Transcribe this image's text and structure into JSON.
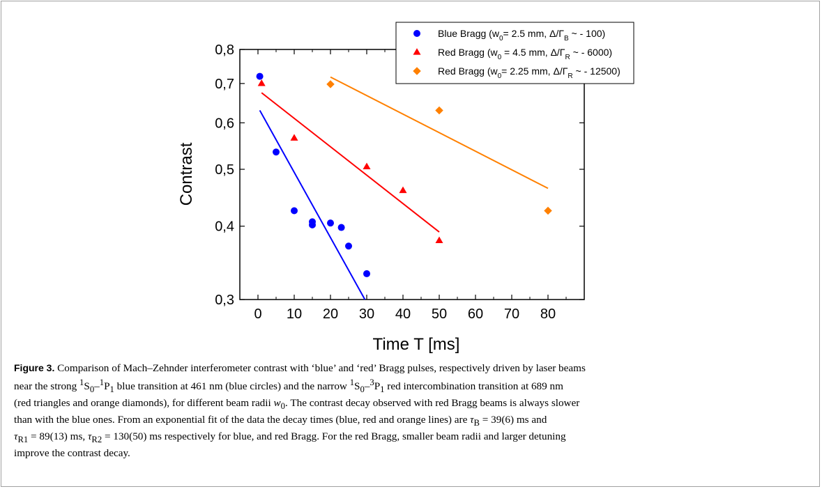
{
  "chart_data": {
    "type": "scatter",
    "y_scale": "log",
    "xlabel": "Time  T [ms]",
    "ylabel": "Contrast",
    "xlim": [
      -5,
      90
    ],
    "ylim": [
      0.3,
      0.8
    ],
    "x_ticks": [
      0,
      10,
      20,
      30,
      40,
      50,
      60,
      70,
      80
    ],
    "y_ticks": [
      {
        "value": 0.3,
        "label": "0,3"
      },
      {
        "value": 0.4,
        "label": "0,4"
      },
      {
        "value": 0.5,
        "label": "0,5"
      },
      {
        "value": 0.6,
        "label": "0,6"
      },
      {
        "value": 0.7,
        "label": "0,7"
      },
      {
        "value": 0.8,
        "label": "0,8"
      }
    ],
    "grid": false,
    "legend_position": "top-right",
    "series": [
      {
        "name": "Blue Bragg",
        "legend": {
          "pre": "Blue Bragg (w",
          "sub1": "0",
          "mid": "= 2.5 mm, Δ/Γ",
          "sub2": "B",
          "post": " ~ - 100)"
        },
        "marker": "circle",
        "color": "#0000ff",
        "points": [
          [
            0.5,
            0.72
          ],
          [
            5,
            0.535
          ],
          [
            10,
            0.425
          ],
          [
            15,
            0.407
          ],
          [
            15,
            0.402
          ],
          [
            20,
            0.405
          ],
          [
            23,
            0.398
          ],
          [
            25,
            0.37
          ],
          [
            30,
            0.332
          ]
        ],
        "fit": [
          [
            0.5,
            0.63
          ],
          [
            29.5,
            0.3
          ]
        ]
      },
      {
        "name": "Red Bragg",
        "legend": {
          "pre": "Red Bragg (w",
          "sub1": "0",
          "mid": " = 4.5 mm, Δ/Γ",
          "sub2": "R",
          "post": " ~ - 6000)"
        },
        "marker": "triangle",
        "color": "#ff0000",
        "points": [
          [
            1,
            0.7
          ],
          [
            10,
            0.565
          ],
          [
            30,
            0.505
          ],
          [
            40,
            0.46
          ],
          [
            50,
            0.378
          ]
        ],
        "fit": [
          [
            1,
            0.675
          ],
          [
            50,
            0.391
          ]
        ]
      },
      {
        "name": "Red Bragg",
        "legend": {
          "pre": "Red Bragg (w",
          "sub1": "0",
          "mid": "= 2.25 mm, Δ/Γ",
          "sub2": "R",
          "post": " ~ - 12500)"
        },
        "marker": "diamond",
        "color": "#ff8000",
        "points": [
          [
            20,
            0.698
          ],
          [
            50,
            0.63
          ],
          [
            80,
            0.425
          ]
        ],
        "fit": [
          [
            20,
            0.718
          ],
          [
            80,
            0.464
          ]
        ]
      }
    ]
  },
  "caption": {
    "figure_label": "Figure 3.",
    "line1": " Comparison of Mach–Zehnder interferometer contrast with ‘blue’ and ‘red’ Bragg pulses, respectively driven by laser beams",
    "line2_a": "near the strong ",
    "line2_s1": "1",
    "line2_b": "S",
    "line2_s2": "0",
    "line2_c": "–",
    "line2_s3": "1",
    "line2_d": "P",
    "line2_s4": "1",
    "line2_e": " blue transition at 461  nm (blue circles) and the narrow ",
    "line2_s5": "1",
    "line2_f": "S",
    "line2_s6": "0",
    "line2_g": "–",
    "line2_s7": "3",
    "line2_h": "P",
    "line2_s8": "1",
    "line2_i": " red intercombination transition at 689  nm",
    "line3_a": "(red triangles and orange diamonds), for different beam radii ",
    "line3_w": "w",
    "line3_w0": "0",
    "line3_b": ". The contrast decay observed with red Bragg beams is always slower",
    "line4_a": "than with the blue ones. From an exponential fit of the data the decay times (blue, red and orange lines) are ",
    "line4_tau": "τ",
    "line4_tau_sub": "B",
    "line4_b": " = 39(6) ms and",
    "line5_tau1": "τ",
    "line5_tau1_sub": "R1",
    "line5_a": " = 89(13) ms, ",
    "line5_tau2": "τ",
    "line5_tau2_sub": "R2",
    "line5_b": " = 130(50) ms respectively for blue, and red Bragg. For the red Bragg, smaller beam radii and larger detuning",
    "line6": "improve the contrast decay."
  }
}
